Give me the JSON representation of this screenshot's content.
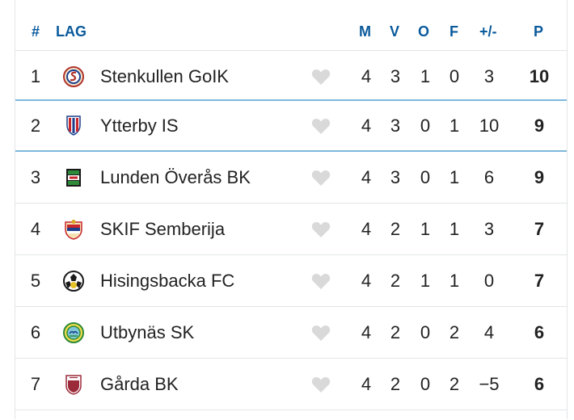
{
  "header": {
    "rank": "#",
    "team": "LAG",
    "m": "M",
    "v": "V",
    "o": "O",
    "f": "F",
    "diff": "+/-",
    "p": "P"
  },
  "rows": [
    {
      "rank": "1",
      "team": "Stenkullen GoIK",
      "m": "4",
      "v": "3",
      "o": "1",
      "f": "0",
      "diff": "3",
      "p": "10",
      "logo": "stenkullen-crest"
    },
    {
      "rank": "2",
      "team": "Ytterby IS",
      "m": "4",
      "v": "3",
      "o": "0",
      "f": "1",
      "diff": "10",
      "p": "9",
      "logo": "ytterby-crest"
    },
    {
      "rank": "3",
      "team": "Lunden Överås BK",
      "m": "4",
      "v": "3",
      "o": "0",
      "f": "1",
      "diff": "6",
      "p": "9",
      "logo": "lunden-crest"
    },
    {
      "rank": "4",
      "team": "SKIF Semberija",
      "m": "4",
      "v": "2",
      "o": "1",
      "f": "1",
      "diff": "3",
      "p": "7",
      "logo": "semberija-crest"
    },
    {
      "rank": "5",
      "team": "Hisingsbacka FC",
      "m": "4",
      "v": "2",
      "o": "1",
      "f": "1",
      "diff": "0",
      "p": "7",
      "logo": "hisingsbacka-crest"
    },
    {
      "rank": "6",
      "team": "Utbynäs SK",
      "m": "4",
      "v": "2",
      "o": "0",
      "f": "2",
      "diff": "4",
      "p": "6",
      "logo": "utbynas-crest"
    },
    {
      "rank": "7",
      "team": "Gårda BK",
      "m": "4",
      "v": "2",
      "o": "0",
      "f": "2",
      "diff": "−5",
      "p": "6",
      "logo": "garda-crest"
    }
  ],
  "colors": {
    "header_text": "#0a5a9c",
    "selected_row_border": "#7fb8dc",
    "heart": "#d9d9d9"
  },
  "icons": {
    "favorite": "heart-icon"
  }
}
